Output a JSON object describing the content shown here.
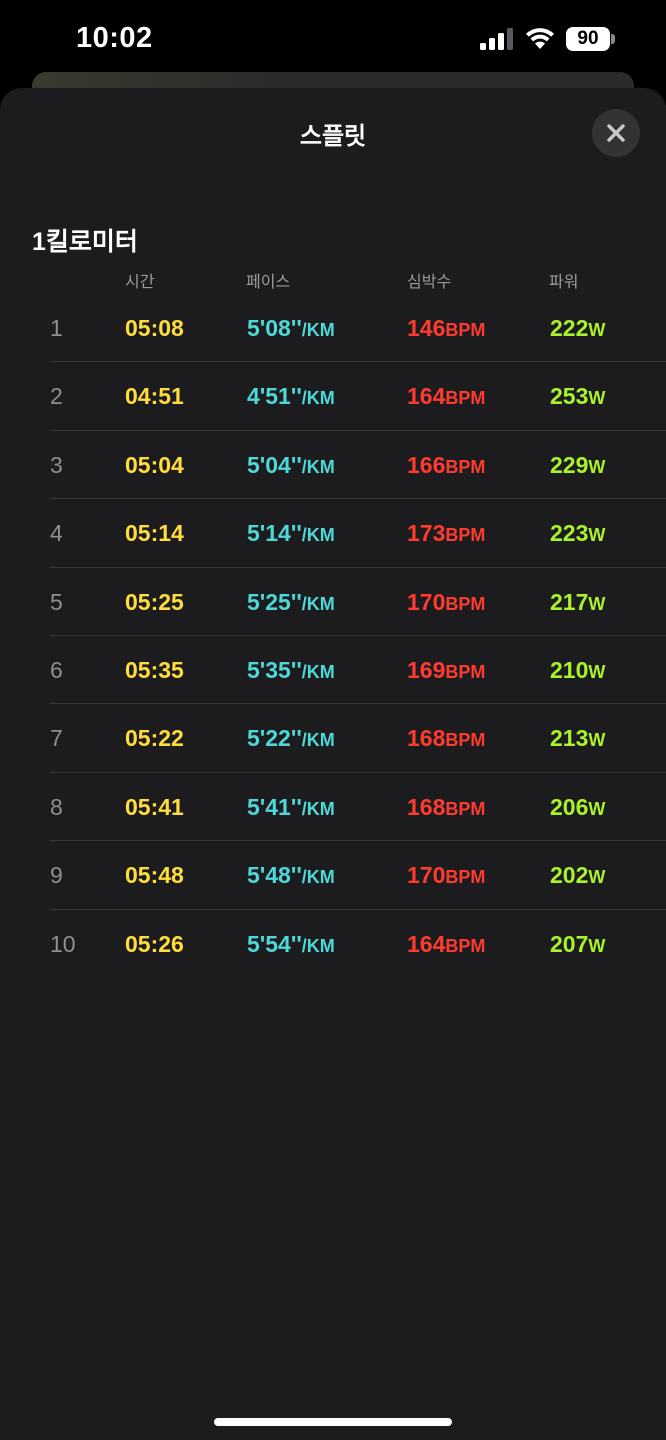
{
  "status_bar": {
    "time": "10:02",
    "battery": "90"
  },
  "sheet": {
    "title": "스플릿",
    "section_title": "1킬로미터",
    "columns": {
      "time": "시간",
      "pace": "페이스",
      "heart_rate": "심박수",
      "power": "파워"
    },
    "units": {
      "pace": "/KM",
      "heart_rate": "BPM",
      "power": "W"
    },
    "splits": [
      {
        "index": "1",
        "time": "05:08",
        "pace": "5'08''",
        "heart_rate": "146",
        "power": "222"
      },
      {
        "index": "2",
        "time": "04:51",
        "pace": "4'51''",
        "heart_rate": "164",
        "power": "253"
      },
      {
        "index": "3",
        "time": "05:04",
        "pace": "5'04''",
        "heart_rate": "166",
        "power": "229"
      },
      {
        "index": "4",
        "time": "05:14",
        "pace": "5'14''",
        "heart_rate": "173",
        "power": "223"
      },
      {
        "index": "5",
        "time": "05:25",
        "pace": "5'25''",
        "heart_rate": "170",
        "power": "217"
      },
      {
        "index": "6",
        "time": "05:35",
        "pace": "5'35''",
        "heart_rate": "169",
        "power": "210"
      },
      {
        "index": "7",
        "time": "05:22",
        "pace": "5'22''",
        "heart_rate": "168",
        "power": "213"
      },
      {
        "index": "8",
        "time": "05:41",
        "pace": "5'41''",
        "heart_rate": "168",
        "power": "206"
      },
      {
        "index": "9",
        "time": "05:48",
        "pace": "5'48''",
        "heart_rate": "170",
        "power": "202"
      },
      {
        "index": "10",
        "time": "05:26",
        "pace": "5'54''",
        "heart_rate": "164",
        "power": "207"
      }
    ]
  },
  "colors": {
    "time": "#ffdd3c",
    "pace": "#4ed8d8",
    "heart_rate": "#ff3b30",
    "power": "#a9f22c"
  },
  "icons": {
    "close": "close-icon",
    "signal": "cellular-signal-icon",
    "wifi": "wifi-icon",
    "battery": "battery-icon"
  }
}
